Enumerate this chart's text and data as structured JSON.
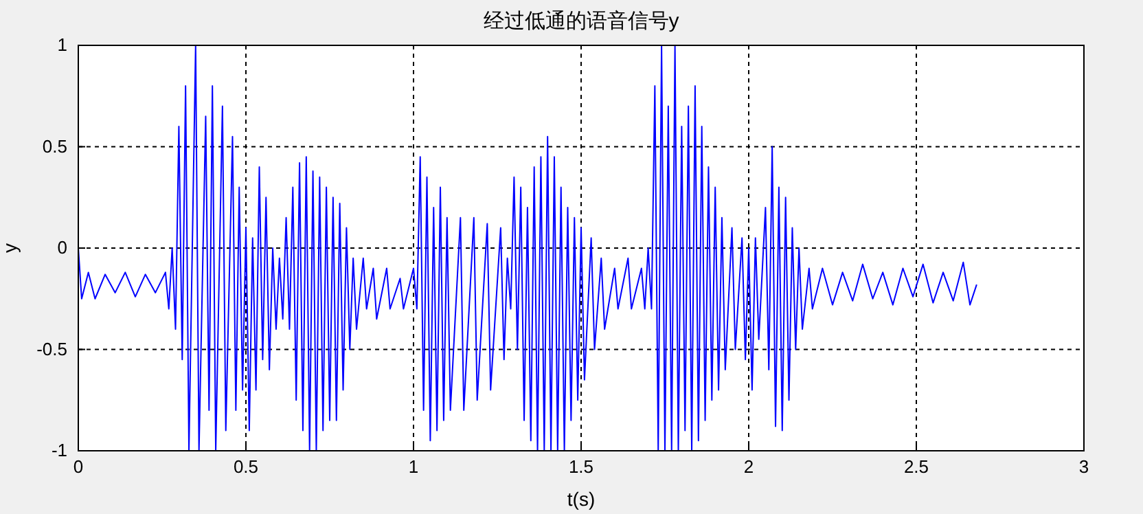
{
  "chart_data": {
    "type": "line",
    "title": "经过低通的语音信号y",
    "xlabel": "t(s)",
    "ylabel": "y",
    "xlim": [
      0,
      3
    ],
    "xticks": [
      0,
      0.5,
      1,
      1.5,
      2,
      2.5,
      3
    ],
    "ylim": [
      -1,
      1
    ],
    "yticks": [
      -1,
      -0.5,
      0,
      0.5,
      1
    ],
    "grid": true,
    "series": [
      {
        "color": "#0000ff",
        "x": [
          0,
          0.01,
          0.03,
          0.05,
          0.08,
          0.11,
          0.14,
          0.17,
          0.2,
          0.23,
          0.26,
          0.27,
          0.28,
          0.29,
          0.3,
          0.31,
          0.32,
          0.33,
          0.35,
          0.36,
          0.38,
          0.39,
          0.4,
          0.41,
          0.43,
          0.44,
          0.46,
          0.47,
          0.48,
          0.49,
          0.5,
          0.51,
          0.52,
          0.53,
          0.54,
          0.55,
          0.56,
          0.57,
          0.58,
          0.59,
          0.6,
          0.61,
          0.62,
          0.63,
          0.64,
          0.65,
          0.66,
          0.67,
          0.68,
          0.69,
          0.7,
          0.71,
          0.72,
          0.73,
          0.74,
          0.75,
          0.76,
          0.77,
          0.78,
          0.79,
          0.8,
          0.81,
          0.82,
          0.83,
          0.85,
          0.86,
          0.88,
          0.89,
          0.92,
          0.93,
          0.96,
          0.97,
          1.0,
          1.01,
          1.02,
          1.03,
          1.04,
          1.05,
          1.06,
          1.07,
          1.08,
          1.09,
          1.1,
          1.11,
          1.14,
          1.15,
          1.18,
          1.19,
          1.22,
          1.23,
          1.26,
          1.27,
          1.28,
          1.29,
          1.3,
          1.31,
          1.32,
          1.33,
          1.34,
          1.35,
          1.36,
          1.37,
          1.38,
          1.39,
          1.4,
          1.41,
          1.42,
          1.43,
          1.44,
          1.45,
          1.46,
          1.47,
          1.48,
          1.49,
          1.5,
          1.51,
          1.53,
          1.54,
          1.56,
          1.57,
          1.6,
          1.61,
          1.64,
          1.65,
          1.68,
          1.69,
          1.7,
          1.71,
          1.72,
          1.73,
          1.74,
          1.75,
          1.76,
          1.77,
          1.78,
          1.79,
          1.8,
          1.81,
          1.82,
          1.83,
          1.84,
          1.85,
          1.86,
          1.87,
          1.88,
          1.89,
          1.9,
          1.91,
          1.92,
          1.93,
          1.95,
          1.96,
          1.98,
          1.99,
          2.0,
          2.01,
          2.02,
          2.03,
          2.05,
          2.06,
          2.07,
          2.08,
          2.09,
          2.1,
          2.11,
          2.12,
          2.13,
          2.14,
          2.15,
          2.16,
          2.18,
          2.19,
          2.22,
          2.25,
          2.28,
          2.31,
          2.34,
          2.37,
          2.4,
          2.43,
          2.46,
          2.49,
          2.52,
          2.55,
          2.58,
          2.61,
          2.64,
          2.66,
          2.68
        ],
        "values": [
          0,
          -0.25,
          -0.12,
          -0.25,
          -0.13,
          -0.22,
          -0.12,
          -0.24,
          -0.13,
          -0.22,
          -0.12,
          -0.3,
          0,
          -0.4,
          0.6,
          -0.55,
          0.8,
          -1,
          1,
          -1,
          0.65,
          -0.8,
          0.8,
          -1,
          0.7,
          -0.9,
          0.55,
          -0.8,
          0.3,
          -0.7,
          0.1,
          -0.9,
          0.05,
          -0.7,
          0.4,
          -0.55,
          0.25,
          -0.6,
          0,
          -0.4,
          -0.05,
          -0.35,
          0.15,
          -0.4,
          0.3,
          -0.75,
          0.42,
          -0.9,
          0.45,
          -1,
          0.38,
          -1,
          0.35,
          -0.9,
          0.3,
          -0.85,
          0.25,
          -0.85,
          0.22,
          -0.7,
          0.1,
          -0.5,
          -0.05,
          -0.4,
          -0.05,
          -0.3,
          -0.1,
          -0.35,
          -0.1,
          -0.3,
          -0.15,
          -0.3,
          -0.1,
          -0.3,
          0.45,
          -0.8,
          0.35,
          -0.95,
          0.2,
          -0.9,
          0.3,
          -0.85,
          0.15,
          -0.8,
          0.15,
          -0.8,
          0.15,
          -0.75,
          0.12,
          -0.7,
          0.1,
          -0.55,
          -0.05,
          -0.3,
          0.35,
          -0.5,
          0.3,
          -0.85,
          0.2,
          -0.95,
          0.4,
          -1,
          0.45,
          -1,
          0.55,
          -1,
          0.45,
          -1,
          0.3,
          -1,
          0.2,
          -0.85,
          0.15,
          -0.75,
          0.1,
          -0.65,
          0.05,
          -0.5,
          -0.05,
          -0.4,
          -0.1,
          -0.3,
          -0.05,
          -0.3,
          -0.1,
          -0.3,
          0,
          -0.3,
          0.8,
          -1,
          1,
          -1,
          0.7,
          -1,
          1,
          -1,
          0.6,
          -0.9,
          0.7,
          -1,
          0.8,
          -0.95,
          0.6,
          -0.85,
          0.4,
          -0.75,
          0.3,
          -0.7,
          0.15,
          -0.6,
          0.1,
          -0.5,
          0.05,
          -0.55,
          0,
          -0.7,
          0.05,
          -0.45,
          0.2,
          -0.6,
          0.5,
          -0.88,
          0.3,
          -0.9,
          0.25,
          -0.75,
          0.1,
          -0.5,
          0,
          -0.4,
          -0.1,
          -0.3,
          -0.1,
          -0.28,
          -0.12,
          -0.26,
          -0.08,
          -0.25,
          -0.12,
          -0.28,
          -0.1,
          -0.24,
          -0.08,
          -0.27,
          -0.12,
          -0.26,
          -0.07,
          -0.28,
          -0.18
        ]
      }
    ]
  }
}
